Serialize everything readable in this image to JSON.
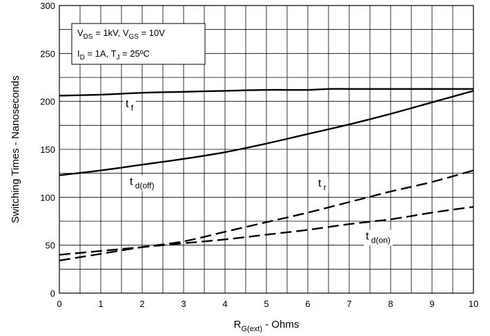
{
  "chart_data": {
    "type": "line",
    "title": "",
    "xlabel": {
      "main": "R",
      "sub": "G(ext)",
      "rest": " - Ohms"
    },
    "ylabel": "Switching Times - Nanoseconds",
    "xlim": [
      0,
      10
    ],
    "ylim": [
      0,
      300
    ],
    "xticks": [
      0,
      1,
      2,
      3,
      4,
      5,
      6,
      7,
      8,
      9,
      10
    ],
    "yticks": [
      0,
      50,
      100,
      150,
      200,
      250,
      300
    ],
    "grid": true,
    "conditions": {
      "line1": [
        {
          "t": "V"
        },
        {
          "t": "DS",
          "sub": true
        },
        {
          "t": " = 1kV, V"
        },
        {
          "t": "GS",
          "sub": true
        },
        {
          "t": " = 10V"
        }
      ],
      "line2": [
        {
          "t": "I"
        },
        {
          "t": "D",
          "sub": true
        },
        {
          "t": " = 1A, T"
        },
        {
          "t": "J",
          "sub": true
        },
        {
          "t": " = 25ºC"
        }
      ]
    },
    "series": [
      {
        "name": {
          "main": "t",
          "sub": "f"
        },
        "dash": false,
        "x": [
          0,
          1,
          2,
          3,
          4,
          5,
          6,
          6.5,
          7,
          8,
          9,
          10
        ],
        "y": [
          206,
          207,
          209,
          210,
          211,
          212,
          212,
          213,
          213,
          213,
          213,
          213
        ],
        "label_at": [
          1.6,
          194
        ]
      },
      {
        "name": {
          "main": "t",
          "sub": "d(off)"
        },
        "dash": false,
        "x": [
          0,
          1,
          2,
          3,
          4,
          5,
          6,
          7,
          8,
          9,
          10
        ],
        "y": [
          123,
          128,
          134,
          140,
          147,
          156,
          166,
          176,
          187,
          199,
          211
        ],
        "label_at": [
          1.7,
          113
        ]
      },
      {
        "name": {
          "main": "t",
          "sub": "r"
        },
        "dash": true,
        "x": [
          0,
          1,
          2,
          3,
          4,
          5,
          6,
          7,
          8,
          9,
          10
        ],
        "y": [
          34,
          41,
          48,
          54,
          64,
          74,
          84,
          95,
          106,
          116,
          128
        ],
        "label_at": [
          6.25,
          111
        ]
      },
      {
        "name": {
          "main": "t",
          "sub": "d(on)"
        },
        "dash": true,
        "x": [
          0,
          1,
          2,
          3,
          4,
          5,
          6,
          7,
          8,
          9,
          10
        ],
        "y": [
          40,
          44,
          48,
          52,
          56,
          61,
          66,
          72,
          77,
          84,
          90
        ],
        "label_at": [
          7.4,
          56
        ]
      }
    ]
  }
}
